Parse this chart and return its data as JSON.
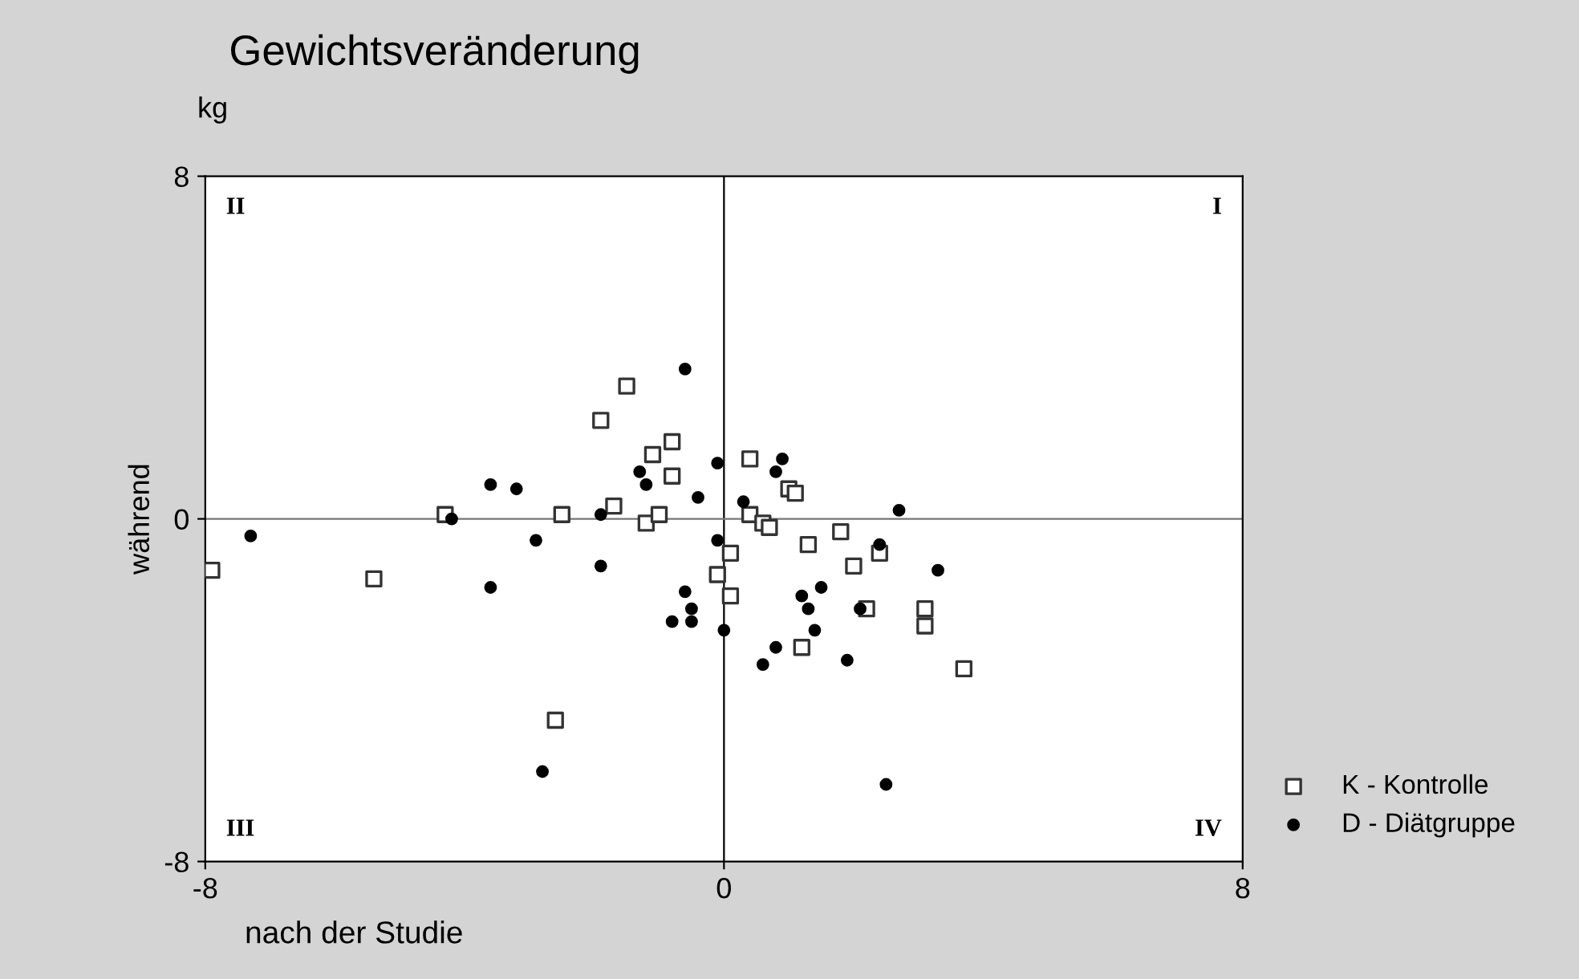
{
  "chart_data": {
    "type": "scatter",
    "title": "Gewichtsveränderung",
    "ylabel": "während",
    "xlabel": "nach der Studie",
    "annotations": [
      "kg",
      "II",
      "I",
      "III",
      "IV"
    ],
    "xlim": [
      -8,
      8
    ],
    "ylim": [
      -8,
      8
    ],
    "xticks": [
      -8,
      0,
      8
    ],
    "yticks": [
      -8,
      0,
      8
    ],
    "grid": false,
    "legend": "bottom right",
    "ref_lines": [
      {
        "axis": "x",
        "value": 0,
        "color": "#000000"
      },
      {
        "axis": "y",
        "value": 0,
        "color": "#777777"
      }
    ],
    "series": [
      {
        "name": "K - Kontrolle",
        "color": "#333333",
        "marker": "square",
        "x": [
          -7.9,
          -5.4,
          -4.3,
          -2.5,
          -1.7,
          -1.2,
          -1.0,
          -1.9,
          -1.5,
          -1.1,
          -0.8,
          -0.8,
          -2.6,
          0.4,
          1.0,
          1.1,
          0.4,
          0.6,
          0.7,
          0.1,
          1.3,
          1.8,
          2.4,
          2.0,
          -0.1,
          0.1,
          2.2,
          3.1,
          3.1,
          1.2,
          3.7
        ],
        "values": [
          -1.2,
          -1.4,
          0.1,
          0.1,
          0.3,
          -0.1,
          0.1,
          2.3,
          3.1,
          1.5,
          1.8,
          1.0,
          -4.7,
          1.4,
          0.7,
          0.6,
          0.1,
          -0.1,
          -0.2,
          -0.8,
          -0.6,
          -0.3,
          -0.8,
          -1.1,
          -1.3,
          -1.8,
          -2.1,
          -2.1,
          -2.5,
          -3.0,
          -3.5
        ]
      },
      {
        "name": "D - Diätgruppe",
        "color": "#000000",
        "marker": "circle",
        "x": [
          -0.6,
          -0.1,
          -1.3,
          -1.2,
          -0.4,
          -3.6,
          -3.2,
          -4.2,
          -1.9,
          -7.3,
          -2.9,
          -1.9,
          -3.6,
          -0.6,
          -0.5,
          -0.8,
          -0.5,
          -2.8,
          -0.1,
          0.9,
          0.8,
          0.3,
          2.7,
          2.4,
          3.3,
          1.5,
          1.2,
          2.1,
          1.3,
          1.4,
          0.0,
          0.8,
          0.6,
          1.9,
          2.5
        ],
        "values": [
          3.5,
          1.3,
          1.1,
          0.8,
          0.5,
          0.8,
          0.7,
          0.0,
          0.1,
          -0.4,
          -0.5,
          -1.1,
          -1.6,
          -1.7,
          -2.1,
          -2.4,
          -2.4,
          -5.9,
          -0.5,
          1.4,
          1.1,
          0.4,
          0.2,
          -0.6,
          -1.2,
          -1.6,
          -1.8,
          -2.1,
          -2.1,
          -2.6,
          -2.6,
          -3.0,
          -3.4,
          -3.3,
          -6.2
        ]
      }
    ]
  }
}
